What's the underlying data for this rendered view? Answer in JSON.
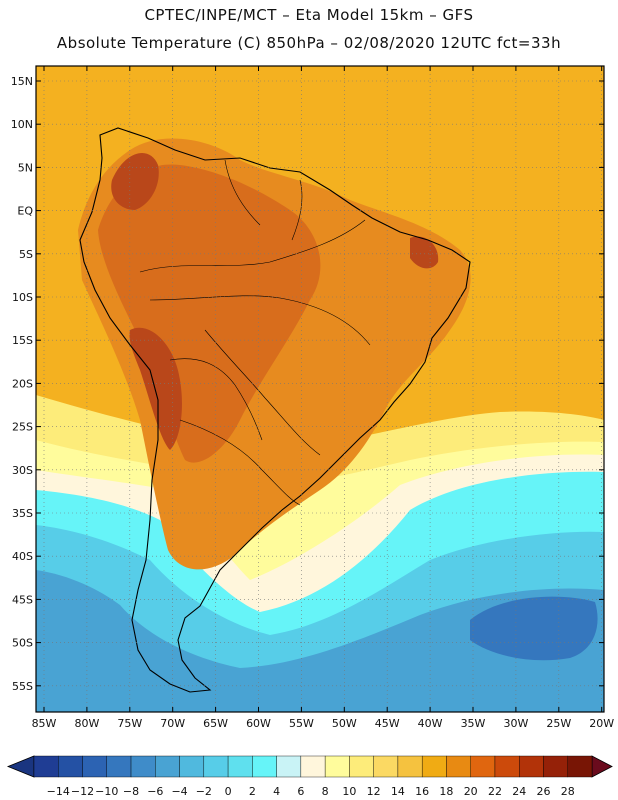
{
  "title_line1": "CPTEC/INPE/MCT –  Eta Model 15km – GFS",
  "title_line2": "Absolute Temperature (C) 850hPa – 02/08/2020 12UTC fct=33h",
  "lat_labels": [
    "15N",
    "10N",
    "5N",
    "EQ",
    "5S",
    "10S",
    "15S",
    "20S",
    "25S",
    "30S",
    "35S",
    "40S",
    "45S",
    "50S",
    "55S"
  ],
  "lon_labels": [
    "85W",
    "80W",
    "75W",
    "70W",
    "65W",
    "60W",
    "55W",
    "50W",
    "45W",
    "40W",
    "35W",
    "30W",
    "25W",
    "20W"
  ],
  "colorbar": {
    "ticks": [
      "-14",
      "-12",
      "-10",
      "-8",
      "-6",
      "-4",
      "-2",
      "0",
      "2",
      "4",
      "6",
      "8",
      "10",
      "12",
      "14",
      "16",
      "18",
      "20",
      "22",
      "24",
      "26",
      "28"
    ],
    "colors": [
      "#1f3d94",
      "#2451a4",
      "#2c63b3",
      "#3577be",
      "#3f8cc9",
      "#49a3d3",
      "#50b9de",
      "#57cde8",
      "#5fe0ee",
      "#66f4f8",
      "#c9f3f6",
      "#fff6dc",
      "#fffc9c",
      "#fdec7a",
      "#fbd963",
      "#f5c23f",
      "#f0ab14",
      "#e88a12",
      "#e0660f",
      "#cc4a0b",
      "#b23309",
      "#952108",
      "#781505"
    ],
    "left_arrow_color": "#1a3580",
    "right_arrow_color": "#6a0b1d"
  },
  "field_colors": {
    "warm_ocean": "#f4b120",
    "land_main": "#e78b1f",
    "land_hot": "#d86d1c",
    "land_peak": "#b9471a",
    "yellow": "#fdec7a",
    "pale_yellow": "#fffc9c",
    "cream": "#fff6dc",
    "cyan_light": "#66f4f8",
    "cyan": "#57cde8",
    "blue_mid": "#49a3d3",
    "blue_dark": "#3577be"
  }
}
